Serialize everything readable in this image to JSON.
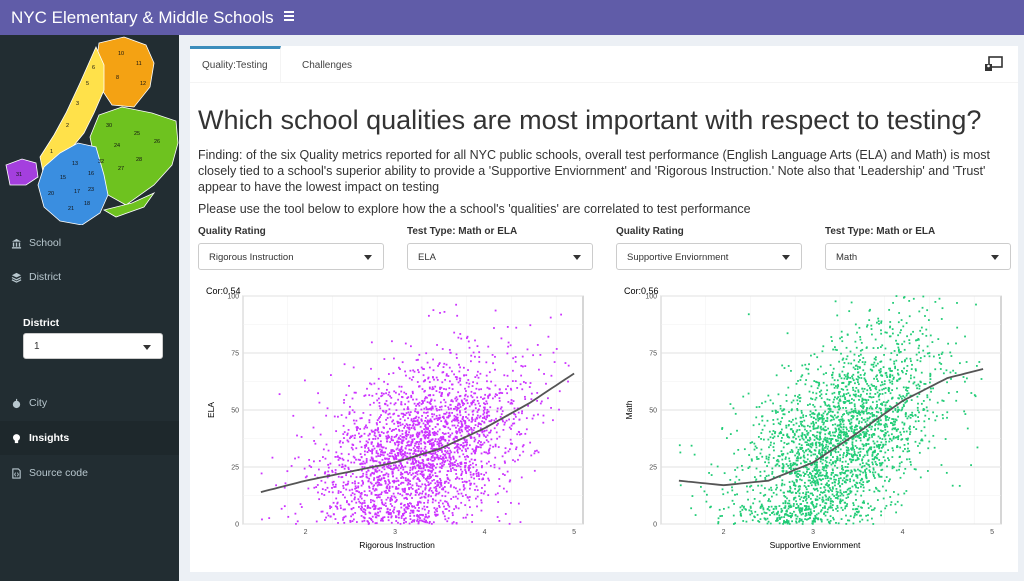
{
  "app": {
    "title": "NYC Elementary & Middle Schools"
  },
  "sidebar": {
    "items": [
      {
        "label": "School",
        "icon": "bank-icon"
      },
      {
        "label": "District",
        "icon": "stack-icon"
      },
      {
        "label": "City",
        "icon": "apple-icon"
      },
      {
        "label": "Insights",
        "icon": "lightbulb-icon"
      },
      {
        "label": "Source code",
        "icon": "file-code-icon"
      }
    ],
    "district_label": "District",
    "district_value": "1",
    "map_labels": [
      "1",
      "2",
      "3",
      "4",
      "5",
      "6",
      "7",
      "8",
      "9",
      "10",
      "11",
      "12",
      "13",
      "14",
      "15",
      "16",
      "17",
      "18",
      "19",
      "20",
      "21",
      "22",
      "23",
      "24",
      "25",
      "26",
      "27",
      "28",
      "29",
      "30",
      "31",
      "32"
    ]
  },
  "tabs": [
    {
      "label": "Quality:Testing",
      "active": true
    },
    {
      "label": "Challenges",
      "active": false
    }
  ],
  "main": {
    "heading": "Which school qualities are most important with respect to testing?",
    "finding": "Finding: of the six Quality metrics reported for all NYC public schools, overall test performance (English Language Arts (ELA) and Math) is most closely tied to a school's superior ability to provide a 'Supportive Enviornment' and 'Rigorous Instruction.' Note also that 'Leadership' and 'Trust' appear to have the lowest impact on testing",
    "instruction": "Please use the tool below to explore how the a school's 'qualities' are correlated to test performance"
  },
  "controls": [
    {
      "label": "Quality Rating",
      "value": "Rigorous Instruction"
    },
    {
      "label": "Test Type: Math or ELA",
      "value": "ELA"
    },
    {
      "label": "Quality Rating",
      "value": "Supportive Enviornment"
    },
    {
      "label": "Test Type: Math or ELA",
      "value": "Math"
    }
  ],
  "colors": {
    "header": "#605ca8",
    "sidebar": "#222d32",
    "series_left": "#cc33ff",
    "series_right": "#22cc77",
    "tab_active_border": "#3c8dbc"
  },
  "chart_data": [
    {
      "type": "scatter",
      "title": "Cor:0.54",
      "xlabel": "Rigorous Instruction",
      "ylabel": "ELA",
      "xlim": [
        1.3,
        5.1
      ],
      "ylim": [
        0,
        100
      ],
      "xticks": [
        2,
        3,
        4,
        5
      ],
      "yticks": [
        0,
        25,
        50,
        75,
        100
      ],
      "grid": true,
      "color": "#cc33ff",
      "trend": {
        "x": [
          1.5,
          2.0,
          2.5,
          3.0,
          3.5,
          4.0,
          4.5,
          5.0
        ],
        "y": [
          14,
          19,
          23,
          27,
          33,
          42,
          53,
          66
        ]
      },
      "cloud": {
        "n": 2600,
        "x_range": [
          1.5,
          5.0
        ],
        "spread": 18
      }
    },
    {
      "type": "scatter",
      "title": "Cor:0.56",
      "xlabel": "Supportive Enviornment",
      "ylabel": "Math",
      "xlim": [
        1.3,
        5.1
      ],
      "ylim": [
        0,
        100
      ],
      "xticks": [
        2,
        3,
        4,
        5
      ],
      "yticks": [
        0,
        25,
        50,
        75,
        100
      ],
      "grid": true,
      "color": "#22cc77",
      "trend": {
        "x": [
          1.5,
          2.0,
          2.5,
          3.0,
          3.5,
          4.0,
          4.5,
          4.9
        ],
        "y": [
          19,
          17,
          19,
          27,
          40,
          54,
          64,
          68
        ]
      },
      "cloud": {
        "n": 2600,
        "x_range": [
          1.5,
          4.95
        ],
        "spread": 20
      }
    }
  ]
}
